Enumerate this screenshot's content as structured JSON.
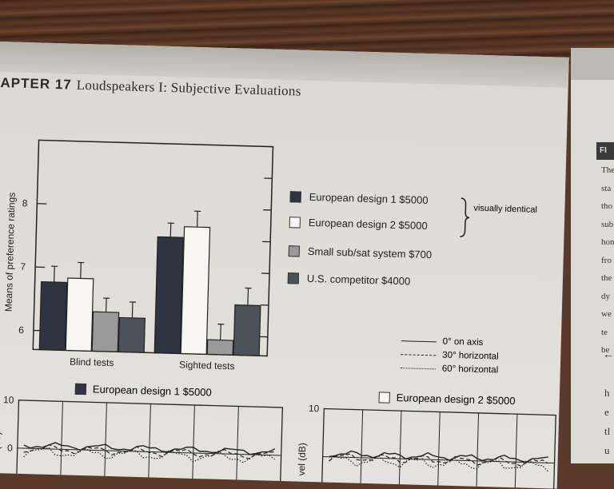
{
  "page": {
    "chapter_label": "APTER 17",
    "chapter_title": "Loudspeakers I: Subjective Evaluations"
  },
  "chart_data": {
    "type": "bar",
    "ylabel": "Means of preference ratings",
    "ylim": [
      5.7,
      9.0
    ],
    "yticks": [
      6,
      7,
      8
    ],
    "categories": [
      "Blind tests",
      "Sighted tests"
    ],
    "series": [
      {
        "name": "European design 1  $5000",
        "values": [
          6.77,
          7.53
        ],
        "errors": [
          0.25,
          0.22
        ],
        "color": "#2f3441"
      },
      {
        "name": "European design 2  $5000",
        "values": [
          6.84,
          7.7
        ],
        "errors": [
          0.25,
          0.25
        ],
        "color": "#f7f6f2"
      },
      {
        "name": "Small sub/sat system $700",
        "values": [
          6.32,
          5.93
        ],
        "errors": [
          0.22,
          0.25
        ],
        "color": "#9a9a9a"
      },
      {
        "name": "U.S. competitor  $4000",
        "values": [
          6.24,
          6.49
        ],
        "errors": [
          0.25,
          0.27
        ],
        "color": "#4d5159"
      }
    ],
    "annotation": "visually identical"
  },
  "line_key": [
    {
      "label": "0° on axis",
      "style": "solid"
    },
    {
      "label": "30° horizontal",
      "style": "dashed"
    },
    {
      "label": "60° horizontal",
      "style": "dotted"
    }
  ],
  "bottom_plots": [
    {
      "title": "European design 1  $5000",
      "ylabel": "evel (dB)",
      "ytick_top": "10",
      "ytick_mid": "0",
      "swatch_color": "#2f3441"
    },
    {
      "title": "European design 2  $5000",
      "ylabel": "vel (dB)",
      "ytick_top": "10",
      "swatch_color": "#f7f6f2"
    }
  ],
  "right_page": {
    "fig_label": "FI",
    "lines": [
      "The",
      "sta",
      "tho",
      "sub",
      "hon",
      "fro",
      "the",
      "dy",
      "we",
      "te",
      "be"
    ],
    "arrow": "←",
    "bottom_lines": [
      "h",
      "e",
      "tl",
      "u"
    ]
  }
}
